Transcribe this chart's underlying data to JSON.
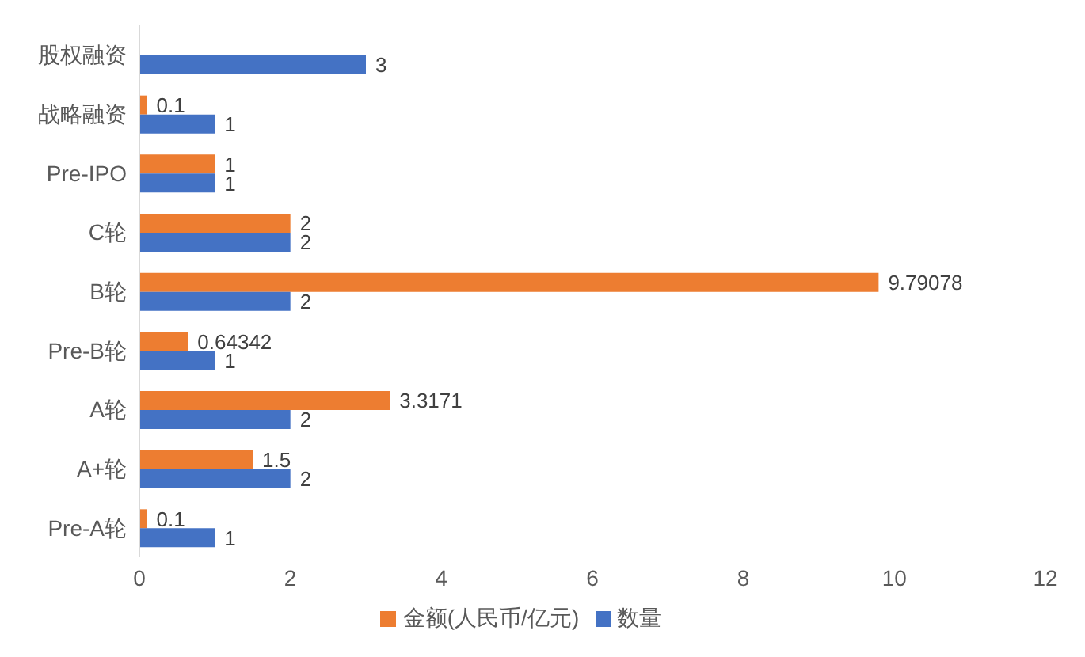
{
  "chart_data": {
    "type": "bar",
    "orientation": "horizontal",
    "categories": [
      "股权融资",
      "战略融资",
      "Pre-IPO",
      "C轮",
      "B轮",
      "Pre-B轮",
      "A轮",
      "A+轮",
      "Pre-A轮"
    ],
    "series": [
      {
        "name": "金额(人民币/亿元)",
        "color": "#ed7d31",
        "values": [
          null,
          0.1,
          1,
          2,
          9.79078,
          0.64342,
          3.3171,
          1.5,
          0.1
        ]
      },
      {
        "name": "数量",
        "color": "#4472c4",
        "values": [
          3,
          1,
          1,
          2,
          2,
          1,
          2,
          2,
          1
        ]
      }
    ],
    "xlim": [
      0,
      12
    ],
    "xticks": [
      0,
      2,
      4,
      6,
      8,
      10,
      12
    ],
    "data_labels": true,
    "grid": false,
    "legend": "bottom"
  }
}
